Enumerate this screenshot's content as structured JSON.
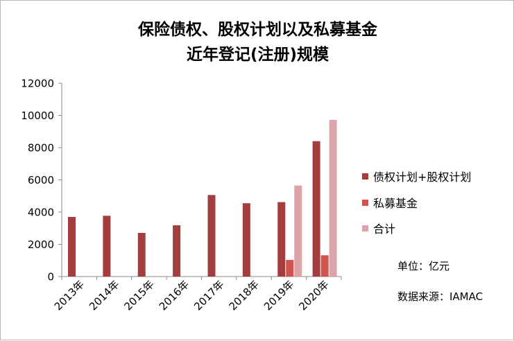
{
  "chart_data": {
    "type": "bar",
    "title": "保险债权、股权计划以及私募基金",
    "subtitle": "近年登记(注册)规模",
    "categories": [
      "2013年",
      "2014年",
      "2015年",
      "2016年",
      "2017年",
      "2018年",
      "2019年",
      "2020年"
    ],
    "series": [
      {
        "name": "债权计划+股权计划",
        "color": "#a43e3e",
        "values": [
          3700,
          3770,
          2710,
          3180,
          5060,
          4550,
          4620,
          8400
        ]
      },
      {
        "name": "私募基金",
        "color": "#d2544f",
        "values": [
          null,
          null,
          null,
          null,
          null,
          null,
          1030,
          1320
        ]
      },
      {
        "name": "合计",
        "color": "#dda4a8",
        "values": [
          null,
          null,
          null,
          null,
          null,
          null,
          5650,
          9720
        ]
      }
    ],
    "y_ticks": [
      "0",
      "2000",
      "4000",
      "6000",
      "8000",
      "10000",
      "12000"
    ],
    "ylim": [
      0,
      12000
    ],
    "legend_position": "right",
    "grid": false
  },
  "notes": {
    "unit": "单位：亿元",
    "source": "数据来源：IAMAC"
  }
}
